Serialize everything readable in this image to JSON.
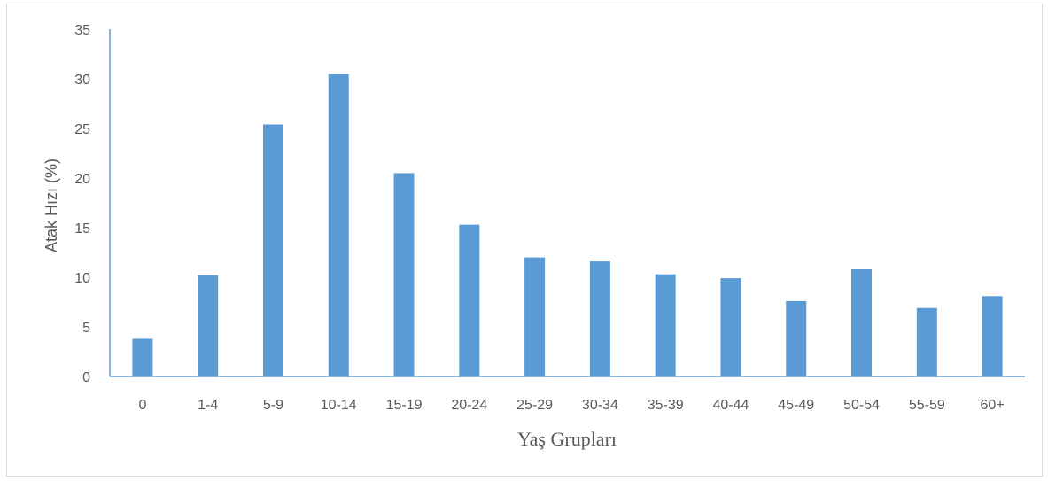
{
  "chart_data": {
    "type": "bar",
    "categories": [
      "0",
      "1-4",
      "5-9",
      "10-14",
      "15-19",
      "20-24",
      "25-29",
      "30-34",
      "35-39",
      "40-44",
      "45-49",
      "50-54",
      "55-59",
      "60+"
    ],
    "values": [
      3.8,
      10.2,
      25.4,
      30.5,
      20.5,
      15.3,
      12.0,
      11.6,
      10.3,
      9.9,
      7.6,
      10.8,
      6.9,
      8.1
    ],
    "xlabel": "Yaş Grupları",
    "ylabel": "Atak Hızı (%)",
    "ylim": [
      0,
      35
    ],
    "yticks": [
      0,
      5,
      10,
      15,
      20,
      25,
      30,
      35
    ],
    "grid": false,
    "legend": "none",
    "bar_color": "#5b9bd5",
    "axis_color": "#5b9bd5"
  }
}
